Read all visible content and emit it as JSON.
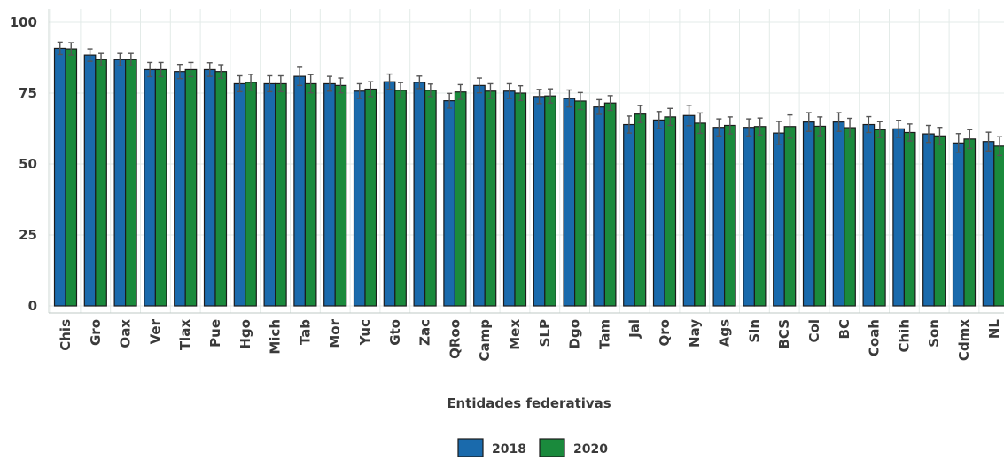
{
  "chart_data": {
    "type": "bar",
    "title": "",
    "xlabel": "Entidades federativas",
    "ylabel": "",
    "ylim": [
      0,
      100
    ],
    "yticks": [
      "0",
      "25",
      "50",
      "75",
      "100"
    ],
    "grid": true,
    "legend_position": "bottom",
    "categories": [
      "Chis",
      "Gro",
      "Oax",
      "Ver",
      "Tlax",
      "Pue",
      "Hgo",
      "Mich",
      "Tab",
      "Mor",
      "Yuc",
      "Gto",
      "Zac",
      "QRoo",
      "Camp",
      "Mex",
      "SLP",
      "Dgo",
      "Tam",
      "Jal",
      "Qro",
      "Nay",
      "Ags",
      "Sin",
      "BCS",
      "Col",
      "BC",
      "Coah",
      "Chih",
      "Son",
      "Cdmx",
      "NL"
    ],
    "series": [
      {
        "name": "2018",
        "color": "#1a6aac",
        "values": [
          90.8,
          88.4,
          86.8,
          83.3,
          82.6,
          83.3,
          78.3,
          78.3,
          80.9,
          78.3,
          75.7,
          79.0,
          78.8,
          72.3,
          77.7,
          75.7,
          73.8,
          73.1,
          70.1,
          63.9,
          65.5,
          67.1,
          62.9,
          62.9,
          60.9,
          64.8,
          64.8,
          63.9,
          62.4,
          60.6,
          57.4,
          57.9
        ],
        "errors": [
          2.2,
          2.2,
          2.2,
          2.5,
          2.5,
          2.4,
          2.8,
          2.8,
          3.2,
          2.6,
          2.6,
          2.7,
          2.2,
          2.6,
          2.6,
          2.6,
          2.5,
          3.0,
          2.6,
          3.0,
          3.0,
          3.6,
          3.0,
          3.0,
          4.1,
          3.3,
          3.3,
          2.8,
          3.0,
          3.0,
          3.3,
          3.3
        ]
      },
      {
        "name": "2020",
        "color": "#1a8a3c",
        "values": [
          90.6,
          86.8,
          86.8,
          83.3,
          83.3,
          82.6,
          78.8,
          78.3,
          78.3,
          77.7,
          76.4,
          76.0,
          76.0,
          75.4,
          75.7,
          75.0,
          74.0,
          72.2,
          71.5,
          67.6,
          66.6,
          64.4,
          63.6,
          63.2,
          63.2,
          63.3,
          62.8,
          62.1,
          61.1,
          59.9,
          58.8,
          56.3
        ]
      }
    ]
  },
  "legend": {
    "items": [
      {
        "label": "2018",
        "color": "#1a6aac"
      },
      {
        "label": "2020",
        "color": "#1a8a3c"
      }
    ]
  }
}
